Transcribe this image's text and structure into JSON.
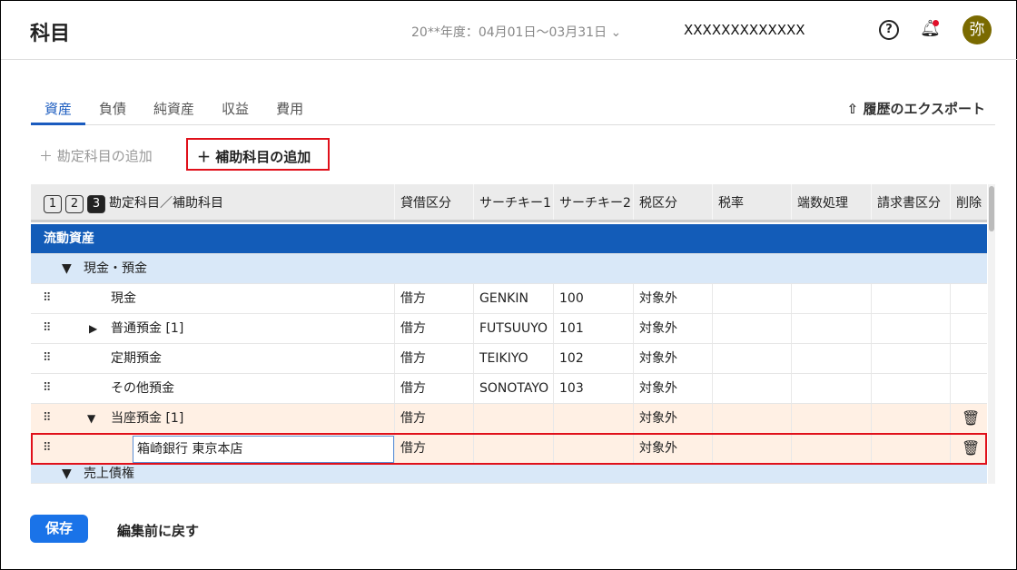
{
  "header": {
    "title": "科目",
    "period": "20**年度：04月01日〜03月31日",
    "company": "XXXXXXXXXXXXX",
    "avatar": "弥"
  },
  "tabs": [
    "資産",
    "負債",
    "純資産",
    "収益",
    "費用"
  ],
  "export_label": "履歴のエクスポート",
  "actions": {
    "add_account": "勘定科目の追加",
    "add_sub": "補助科目の追加"
  },
  "levels": [
    "1",
    "2",
    "3"
  ],
  "columns": [
    "勘定科目／補助科目",
    "貸借区分",
    "サーチキー1",
    "サーチキー2",
    "税区分",
    "税率",
    "端数処理",
    "請求書区分",
    "削除"
  ],
  "section": "流動資産",
  "groups": [
    "現金・預金",
    "売上債権"
  ],
  "rows": [
    {
      "name": "現金",
      "side": "借方",
      "sk1": "GENKIN",
      "sk2": "100",
      "tax": "対象外"
    },
    {
      "name": "普通預金 [1]",
      "side": "借方",
      "sk1": "FUTSUUYO",
      "sk2": "101",
      "tax": "対象外"
    },
    {
      "name": "定期預金",
      "side": "借方",
      "sk1": "TEIKIYO",
      "sk2": "102",
      "tax": "対象外"
    },
    {
      "name": "その他預金",
      "side": "借方",
      "sk1": "SONOTAYO",
      "sk2": "103",
      "tax": "対象外"
    },
    {
      "name": "当座預金 [1]",
      "side": "借方",
      "sk1": "",
      "sk2": "",
      "tax": "対象外"
    },
    {
      "name": "箱崎銀行 東京本店",
      "side": "借方",
      "sk1": "",
      "sk2": "",
      "tax": "対象外"
    }
  ],
  "footer": {
    "save": "保存",
    "revert": "編集前に戻す"
  }
}
